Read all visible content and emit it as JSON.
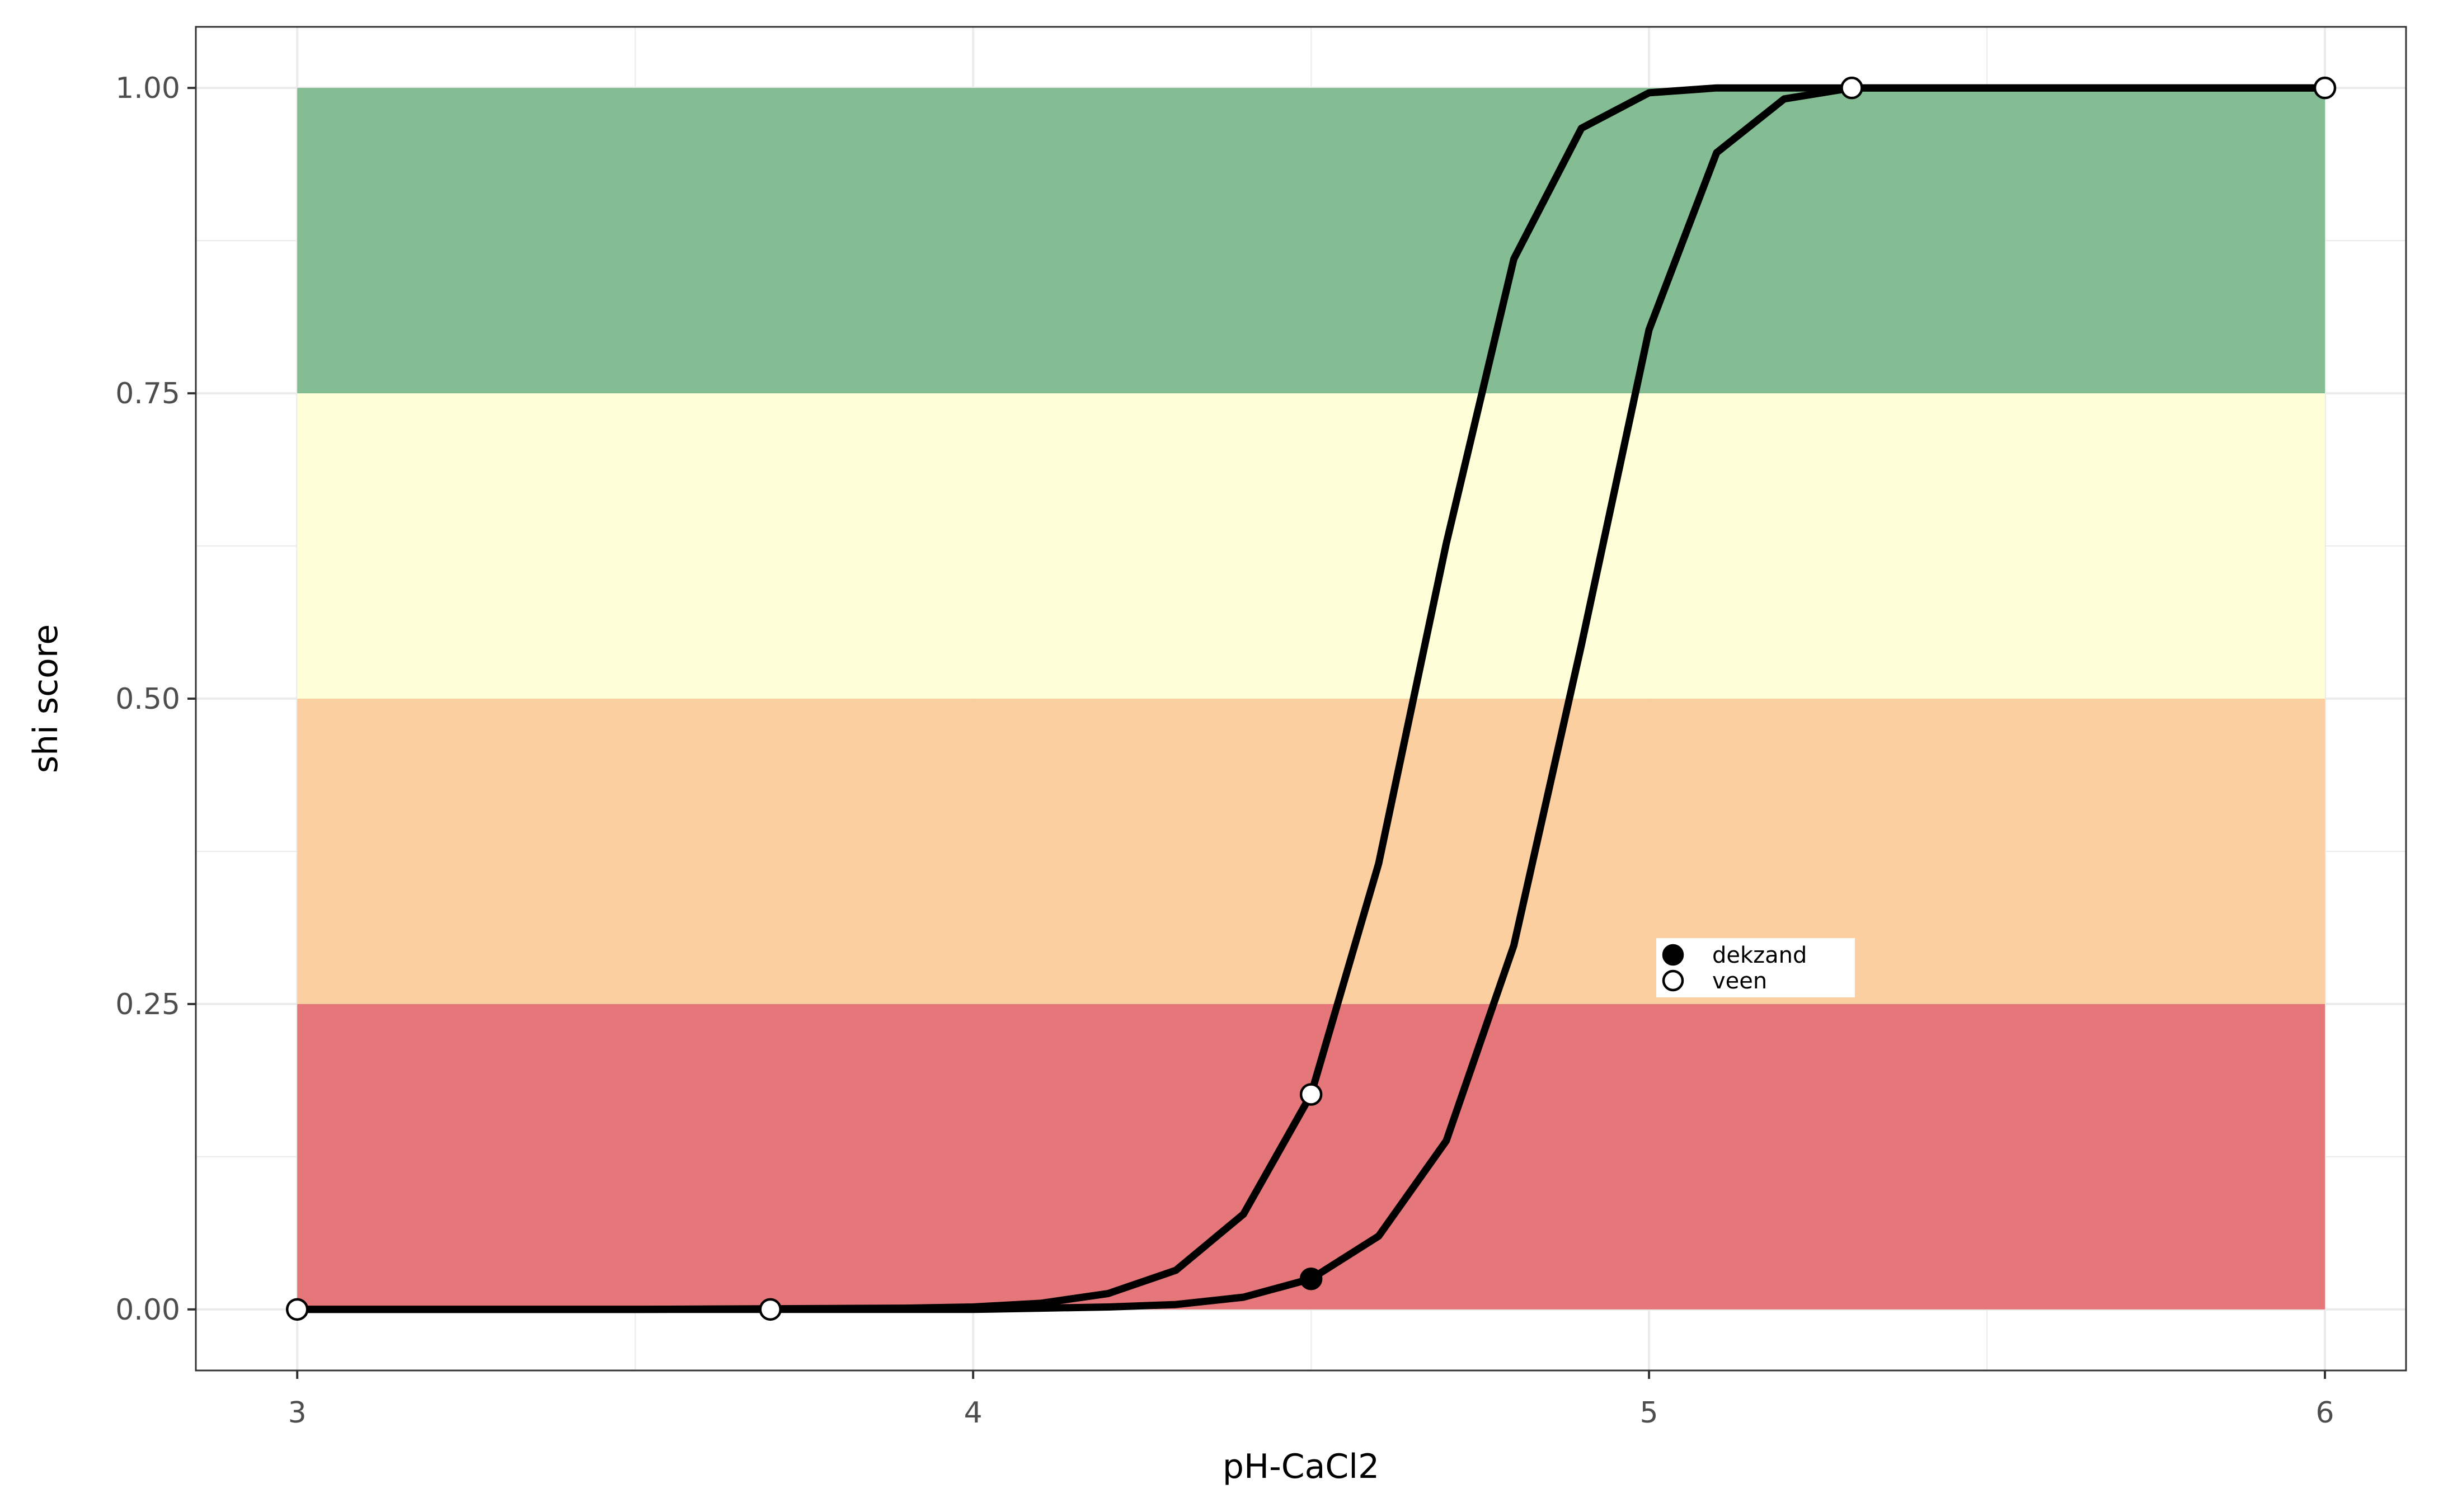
{
  "chart_data": {
    "type": "line",
    "xlabel": "pH-CaCl2",
    "ylabel": "shi score",
    "xlim": [
      2.85,
      6.12
    ],
    "ylim": [
      -0.05,
      1.05
    ],
    "x_ticks": [
      3,
      4,
      5,
      6
    ],
    "x_tick_labels": [
      "3",
      "4",
      "5",
      "6"
    ],
    "y_ticks": [
      0,
      0.25,
      0.5,
      0.75,
      1
    ],
    "y_tick_labels": [
      "0.00",
      "0.25",
      "0.50",
      "0.75",
      "1.00"
    ],
    "grid": true,
    "legend_position": "inside-right",
    "bands": [
      {
        "ymin": 0.0,
        "ymax": 0.25,
        "color": "#e46f72"
      },
      {
        "ymin": 0.25,
        "ymax": 0.5,
        "color": "#fccc9c"
      },
      {
        "ymin": 0.5,
        "ymax": 0.75,
        "color": "#feffd7"
      },
      {
        "ymin": 0.75,
        "ymax": 1.0,
        "color": "#7db98d"
      }
    ],
    "band_x_range": [
      3,
      6
    ],
    "curves": [
      {
        "x": [
          3.0,
          3.5,
          3.9,
          4.0,
          4.1,
          4.2,
          4.3,
          4.4,
          4.5,
          4.6,
          4.7,
          4.8,
          4.9,
          5.0,
          5.1,
          5.2,
          5.3,
          6.0
        ],
        "y": [
          0.0,
          0.0,
          0.001,
          0.002,
          0.005,
          0.013,
          0.032,
          0.078,
          0.176,
          0.365,
          0.627,
          0.86,
          0.967,
          0.996,
          1.0,
          1.0,
          1.0,
          1.0
        ]
      },
      {
        "x": [
          3.0,
          3.7,
          4.0,
          4.1,
          4.2,
          4.3,
          4.4,
          4.5,
          4.6,
          4.7,
          4.8,
          4.9,
          5.0,
          5.1,
          5.2,
          5.3,
          6.0
        ],
        "y": [
          0.0,
          0.0,
          0.0,
          0.001,
          0.002,
          0.004,
          0.01,
          0.025,
          0.06,
          0.138,
          0.298,
          0.544,
          0.802,
          0.947,
          0.991,
          1.0,
          1.0
        ]
      }
    ],
    "series": [
      {
        "name": "dekzand",
        "marker": "filled",
        "color": "#000000",
        "x": [
          4.5
        ],
        "y": [
          0.025
        ]
      },
      {
        "name": "veen",
        "marker": "open",
        "color": "#ffffff",
        "x": [
          3.0,
          3.7,
          4.5,
          5.3,
          6.0
        ],
        "y": [
          0.0,
          0.0,
          0.176,
          1.0,
          1.0
        ]
      }
    ]
  }
}
